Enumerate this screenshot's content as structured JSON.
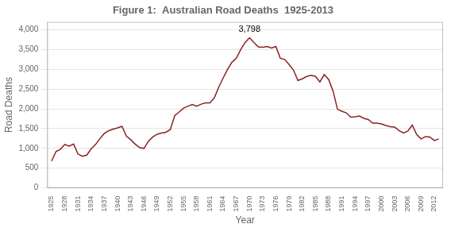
{
  "chart_data": {
    "type": "line",
    "title": "Figure 1:  Australian Road Deaths  1925-2013",
    "xlabel": "Year",
    "ylabel": "Road Deaths",
    "color": "#8B2020",
    "grid": "y",
    "x": [
      1925,
      1926,
      1927,
      1928,
      1929,
      1930,
      1931,
      1932,
      1933,
      1934,
      1935,
      1936,
      1937,
      1938,
      1939,
      1940,
      1941,
      1942,
      1943,
      1944,
      1945,
      1946,
      1947,
      1948,
      1949,
      1950,
      1951,
      1952,
      1953,
      1954,
      1955,
      1956,
      1957,
      1958,
      1959,
      1960,
      1961,
      1962,
      1963,
      1964,
      1965,
      1966,
      1967,
      1968,
      1969,
      1970,
      1971,
      1972,
      1973,
      1974,
      1975,
      1976,
      1977,
      1978,
      1979,
      1980,
      1981,
      1982,
      1983,
      1984,
      1985,
      1986,
      1987,
      1988,
      1989,
      1990,
      1991,
      1992,
      1993,
      1994,
      1995,
      1996,
      1997,
      1998,
      1999,
      2000,
      2001,
      2002,
      2003,
      2004,
      2005,
      2006,
      2007,
      2008,
      2009,
      2010,
      2011,
      2012,
      2013
    ],
    "values": [
      680,
      920,
      980,
      1100,
      1060,
      1110,
      860,
      800,
      830,
      990,
      1100,
      1250,
      1380,
      1450,
      1490,
      1520,
      1560,
      1310,
      1220,
      1110,
      1020,
      1000,
      1180,
      1290,
      1360,
      1390,
      1410,
      1480,
      1830,
      1920,
      2020,
      2070,
      2110,
      2070,
      2120,
      2150,
      2150,
      2280,
      2550,
      2780,
      3000,
      3180,
      3280,
      3500,
      3680,
      3798,
      3680,
      3570,
      3560,
      3580,
      3540,
      3580,
      3280,
      3250,
      3120,
      2980,
      2720,
      2760,
      2820,
      2850,
      2820,
      2680,
      2870,
      2740,
      2450,
      1990,
      1940,
      1900,
      1790,
      1800,
      1820,
      1760,
      1730,
      1640,
      1640,
      1620,
      1580,
      1550,
      1540,
      1450,
      1390,
      1440,
      1590,
      1350,
      1240,
      1300,
      1290,
      1200,
      1240
    ],
    "xlim": [
      1924,
      2014
    ],
    "xticks": [
      1925,
      1928,
      1931,
      1934,
      1937,
      1940,
      1943,
      1946,
      1949,
      1952,
      1955,
      1958,
      1961,
      1964,
      1967,
      1970,
      1973,
      1976,
      1979,
      1982,
      1985,
      1988,
      1991,
      1994,
      1997,
      2000,
      2003,
      2006,
      2009,
      2012
    ],
    "ylim": [
      0,
      4200
    ],
    "yticks": [
      0,
      500,
      {
        "value": 1000,
        "label": "1,000"
      },
      {
        "value": 1500,
        "label": "1,500"
      },
      {
        "value": 2000,
        "label": "2,000"
      },
      {
        "value": 2500,
        "label": "2,500"
      },
      {
        "value": 3000,
        "label": "3,000"
      },
      {
        "value": 3500,
        "label": "3,500"
      },
      {
        "value": 4000,
        "label": "4,000"
      }
    ],
    "annotations": [
      {
        "text": "3,798",
        "x": 1970,
        "y": 3798
      }
    ]
  }
}
